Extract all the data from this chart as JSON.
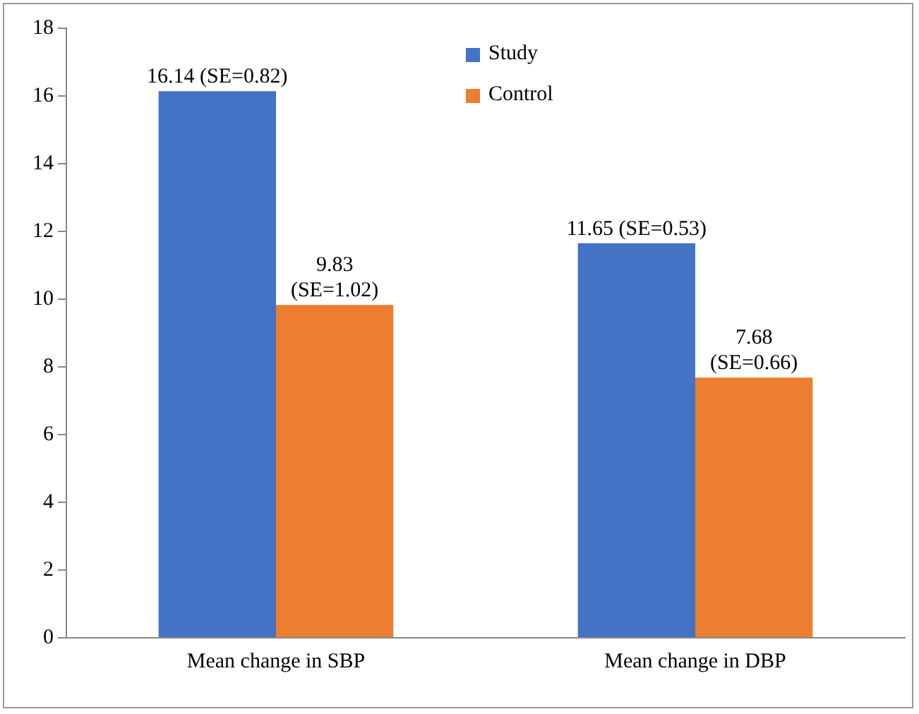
{
  "chart_data": {
    "type": "bar",
    "categories": [
      "Mean change in SBP",
      "Mean change in DBP"
    ],
    "series": [
      {
        "name": "Study",
        "color": "#4472c4",
        "values": [
          16.14,
          11.65
        ],
        "value_labels": [
          "16.14 (SE=0.82)",
          "11.65 (SE=0.53)"
        ]
      },
      {
        "name": "Control",
        "color": "#ed7d31",
        "values": [
          9.83,
          7.68
        ],
        "value_labels": [
          "9.83 (SE=1.02)",
          "7.68 (SE=0.66)"
        ]
      }
    ],
    "ylim": [
      0,
      18
    ],
    "yticks": [
      0,
      2,
      4,
      6,
      8,
      10,
      12,
      14,
      16,
      18
    ],
    "grid": false,
    "legend": "top"
  }
}
